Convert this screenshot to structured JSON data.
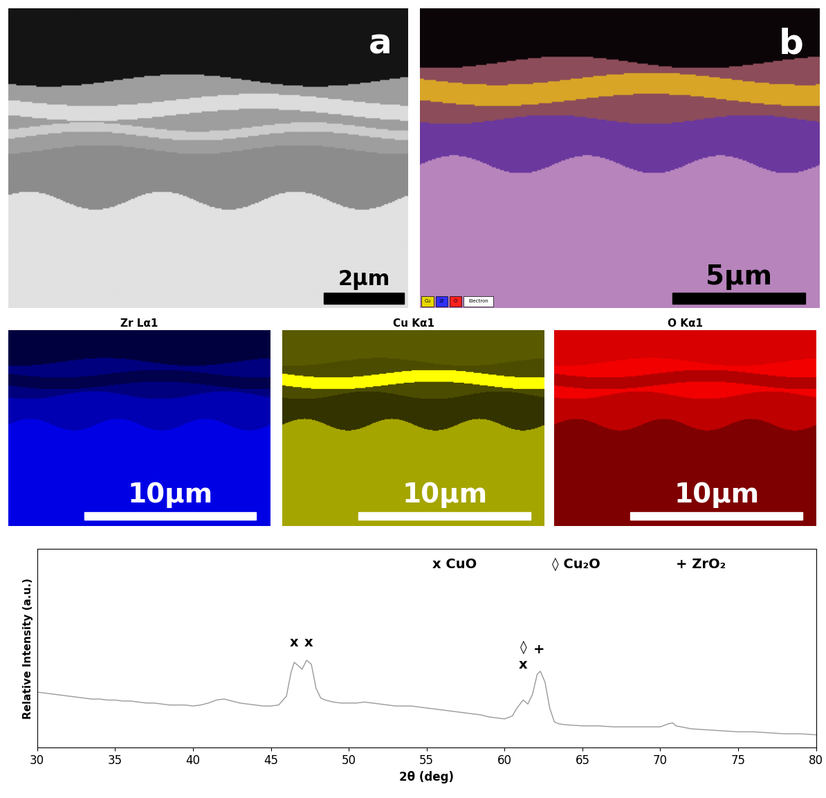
{
  "panels": [
    {
      "label": "a",
      "scale_bar": "2μm"
    },
    {
      "label": "b",
      "scale_bar": "5μm",
      "legend": [
        {
          "name": "Cu",
          "color": "#e8d800"
        },
        {
          "name": "Zr",
          "color": "#3030ff"
        },
        {
          "name": "O",
          "color": "#ff2020"
        },
        {
          "name": "Electron",
          "color": "#ffffff"
        }
      ]
    }
  ],
  "maps": [
    {
      "title": "Zr Lα1",
      "scale_bar": "10μm",
      "color": "#0000ff"
    },
    {
      "title": "Cu Kα1",
      "scale_bar": "10μm",
      "color": "#ffff00"
    },
    {
      "title": "O Kα1",
      "scale_bar": "10μm",
      "color": "#ff0000"
    }
  ],
  "chart_data": {
    "type": "line",
    "x_label": "2θ (deg)",
    "y_label": "Relative Intensity (a.u.)",
    "x": [
      30,
      30.5,
      31,
      31.5,
      32,
      32.5,
      33,
      33.5,
      34,
      34.5,
      35,
      35.5,
      36,
      36.5,
      37,
      37.5,
      38,
      38.5,
      39,
      39.5,
      40,
      40.5,
      41,
      41.5,
      42,
      42.5,
      43,
      43.5,
      44,
      44.5,
      45,
      45.5,
      46,
      46.3,
      46.5,
      46.8,
      47,
      47.3,
      47.6,
      47.9,
      48.2,
      48.5,
      49,
      49.5,
      50,
      50.5,
      51,
      51.5,
      52,
      52.5,
      53,
      53.5,
      54,
      54.5,
      55,
      55.5,
      56,
      56.5,
      57,
      57.5,
      58,
      58.5,
      59,
      59.5,
      60,
      60.5,
      60.8,
      61.2,
      61.5,
      61.8,
      62.1,
      62.3,
      62.6,
      62.9,
      63.2,
      63.5,
      64,
      65,
      66,
      67,
      68,
      69,
      70,
      70.5,
      70.8,
      71,
      72,
      73,
      74,
      75,
      76,
      77,
      78,
      79,
      80
    ],
    "values": [
      28,
      27.5,
      27,
      26.5,
      26,
      25.5,
      25,
      24.5,
      24.5,
      24,
      24,
      23.5,
      23.5,
      23,
      22.5,
      22.5,
      22,
      21.5,
      21.5,
      21.5,
      21,
      21.5,
      22.5,
      24,
      24.5,
      23.5,
      22.5,
      22,
      21.5,
      21,
      21,
      21.5,
      26,
      38,
      43,
      41,
      39.5,
      44,
      42,
      30,
      25,
      24,
      23,
      22.5,
      22.5,
      22.5,
      23,
      22.5,
      22,
      21.5,
      21,
      21,
      21,
      20.5,
      20,
      19.5,
      19,
      18.5,
      18,
      17.5,
      17,
      16.5,
      15.5,
      15,
      14.5,
      16,
      20,
      24,
      22,
      27,
      37,
      38.5,
      33,
      20,
      13,
      12,
      11.5,
      11,
      11,
      10.5,
      10.5,
      10.5,
      10.5,
      12,
      12.5,
      11,
      9.5,
      9,
      8.5,
      8,
      8,
      7.5,
      7,
      7,
      6.5
    ],
    "color": "#999999",
    "xlim": [
      30,
      80
    ],
    "xticks": [
      30,
      35,
      40,
      45,
      50,
      55,
      60,
      65,
      70,
      75,
      80
    ],
    "ylim": [
      0,
      100
    ],
    "tick_labels": "x",
    "annotations": [
      {
        "text": "x",
        "x": 46.5,
        "y": 49.5
      },
      {
        "text": "x",
        "x": 47.4,
        "y": 49.5
      },
      {
        "text": "◊",
        "x": 61.2,
        "y": 47
      },
      {
        "text": "x",
        "x": 61.2,
        "y": 38.5
      },
      {
        "text": "+",
        "x": 62.2,
        "y": 46
      },
      {
        "text": "x CuO",
        "x": 56.8,
        "y": 89
      },
      {
        "text": "◊ Cu₂O",
        "x": 64.6,
        "y": 89
      },
      {
        "text": "+ ZrO₂",
        "x": 72.6,
        "y": 89
      }
    ]
  }
}
